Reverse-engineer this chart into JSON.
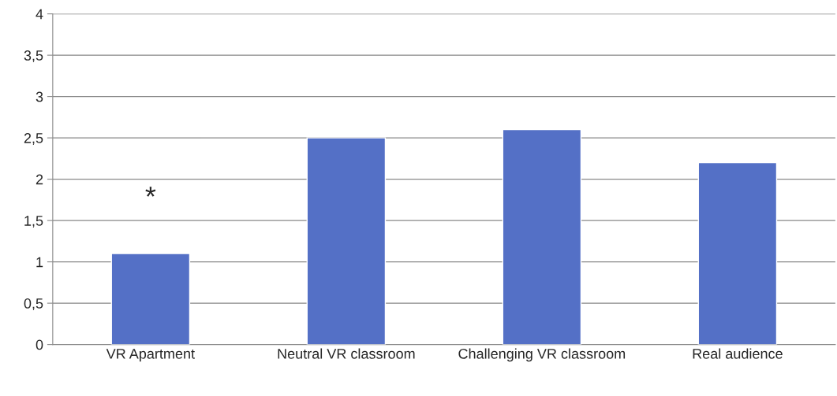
{
  "chart_data": {
    "type": "bar",
    "categories": [
      "VR Apartment",
      "Neutral VR classroom",
      "Challenging VR classroom",
      "Real audience"
    ],
    "values": [
      1.1,
      2.5,
      2.6,
      2.2
    ],
    "color": "#5470c6",
    "ylim": [
      0,
      4
    ],
    "yticks": [
      0,
      {
        "value": 0.5,
        "label": "0,5"
      },
      1,
      {
        "value": 1.5,
        "label": "1,5"
      },
      2,
      {
        "value": 2.5,
        "label": "2,5"
      },
      3,
      {
        "value": 3.5,
        "label": "3,5"
      },
      4
    ],
    "grid": "y",
    "annotations": [
      {
        "text": "*",
        "x": "VR Apartment",
        "y": 1.1
      }
    ]
  }
}
